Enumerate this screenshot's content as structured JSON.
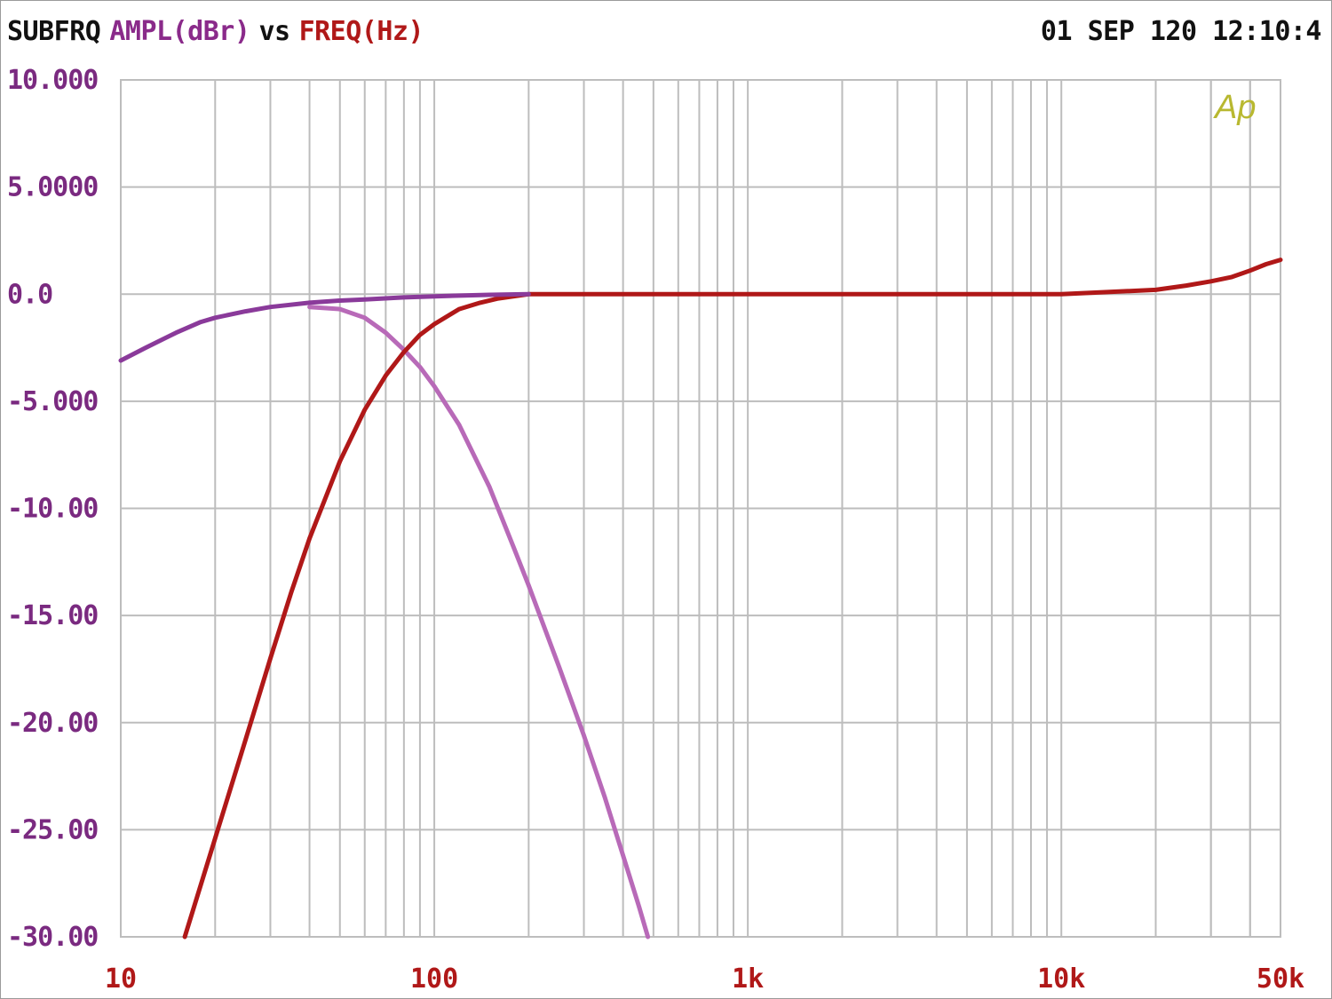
{
  "header": {
    "prefix": "SUBFRQ",
    "ylabel": "AMPL(dBr)",
    "vs": "vs",
    "xlabel": "FREQ(Hz)",
    "timestamp": "01 SEP 120 12:10:4"
  },
  "colors": {
    "prefix": "#111111",
    "ylabel": "#8a2a8a",
    "xlabel": "#b01818",
    "ytick": "#7a2a80",
    "xtick": "#b01818",
    "grid": "#bdbdbd",
    "lowpass_series": "#b86ab8",
    "highpass_series": "#b01818",
    "fullrange_series": "#8a3a9a",
    "logo": "#b8b830"
  },
  "logo": "Ap",
  "chart_data": {
    "type": "line",
    "title": "",
    "xlabel": "FREQ(Hz)",
    "ylabel": "AMPL(dBr)",
    "xscale": "log",
    "xlim": [
      10,
      50000
    ],
    "ylim": [
      -30,
      10
    ],
    "grid": true,
    "legend": "none",
    "x_tick_labels": [
      {
        "value": 10,
        "label": "10"
      },
      {
        "value": 100,
        "label": "100"
      },
      {
        "value": 1000,
        "label": "1k"
      },
      {
        "value": 10000,
        "label": "10k"
      },
      {
        "value": 50000,
        "label": "50k"
      }
    ],
    "y_tick_labels": [
      {
        "value": 10,
        "label": "10.000"
      },
      {
        "value": 5,
        "label": "5.0000"
      },
      {
        "value": 0,
        "label": "0.0"
      },
      {
        "value": -5,
        "label": "-5.000"
      },
      {
        "value": -10,
        "label": "-10.00"
      },
      {
        "value": -15,
        "label": "-15.00"
      },
      {
        "value": -20,
        "label": "-20.00"
      },
      {
        "value": -25,
        "label": "-25.00"
      },
      {
        "value": -30,
        "label": "-30.00"
      }
    ],
    "series": [
      {
        "color_key": "lowpass_series",
        "x": [
          40,
          50,
          60,
          70,
          80,
          90,
          100,
          120,
          150,
          180,
          200,
          250,
          300,
          350,
          400,
          450,
          480
        ],
        "y": [
          -0.6,
          -0.7,
          -1.1,
          -1.8,
          -2.6,
          -3.4,
          -4.3,
          -6.1,
          -9.0,
          -11.9,
          -13.6,
          -17.4,
          -20.6,
          -23.5,
          -26.2,
          -28.6,
          -30.0
        ]
      },
      {
        "color_key": "highpass_series",
        "x": [
          16,
          20,
          25,
          30,
          35,
          40,
          50,
          60,
          70,
          80,
          90,
          100,
          120,
          140,
          160,
          200,
          500,
          1000,
          5000,
          10000,
          20000,
          25000,
          30000,
          35000,
          40000,
          45000,
          50000
        ],
        "y": [
          -30.0,
          -25.4,
          -20.8,
          -17.0,
          -13.9,
          -11.4,
          -7.8,
          -5.4,
          -3.8,
          -2.7,
          -1.9,
          -1.4,
          -0.7,
          -0.4,
          -0.2,
          0.0,
          0.0,
          0.0,
          0.0,
          0.0,
          0.2,
          0.4,
          0.6,
          0.8,
          1.1,
          1.4,
          1.6
        ]
      },
      {
        "color_key": "fullrange_series",
        "x": [
          10,
          12,
          15,
          18,
          20,
          25,
          30,
          40,
          50,
          60,
          80,
          100,
          150,
          200
        ],
        "y": [
          -3.1,
          -2.5,
          -1.8,
          -1.3,
          -1.1,
          -0.8,
          -0.6,
          -0.4,
          -0.3,
          -0.25,
          -0.15,
          -0.1,
          -0.03,
          0.0
        ]
      }
    ]
  }
}
